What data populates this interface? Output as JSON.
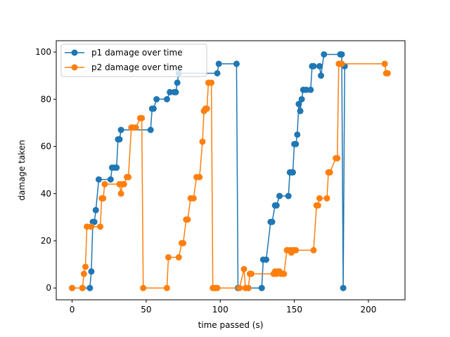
{
  "chart_data": {
    "type": "line",
    "title": "",
    "xlabel": "time passed (s)",
    "ylabel": "damage taken",
    "xlim": [
      -10.7,
      224.7
    ],
    "ylim": [
      -5,
      104.8
    ],
    "xticks": [
      0,
      50,
      100,
      150,
      200
    ],
    "yticks": [
      0,
      20,
      40,
      60,
      80,
      100
    ],
    "grid": false,
    "legend_position": "top-left",
    "series": [
      {
        "name": "p1 damage over time",
        "color": "#1f77b4",
        "marker": "circle",
        "x": [
          0,
          7,
          12,
          13,
          14,
          15,
          16,
          18,
          26,
          27,
          29,
          30,
          31,
          32,
          33,
          53,
          54,
          55,
          57,
          64,
          66,
          69,
          70,
          71,
          72,
          98,
          99,
          111,
          112,
          119,
          128,
          129,
          131,
          134,
          135,
          137,
          138,
          140,
          146,
          147,
          148,
          149,
          150,
          151,
          152,
          153,
          154,
          155,
          156,
          158,
          161,
          162,
          163,
          167,
          168,
          170,
          181,
          182,
          183,
          184
        ],
        "y": [
          0,
          0,
          0,
          7,
          28,
          28,
          33,
          46,
          46,
          51,
          51,
          51,
          63,
          63,
          67,
          67,
          76,
          76,
          80,
          80,
          83,
          83,
          83,
          87,
          91,
          91,
          95,
          95,
          0,
          0,
          0,
          12,
          12,
          28,
          28,
          35,
          35,
          39,
          39,
          49,
          49,
          49,
          61,
          61,
          65,
          78,
          75,
          80,
          84,
          84,
          84,
          94,
          94,
          94,
          90,
          99,
          99,
          99,
          0,
          94
        ]
      },
      {
        "name": "p2 damage over time",
        "color": "#ff7f0e",
        "marker": "circle",
        "x": [
          0,
          7,
          8,
          9,
          10,
          13,
          19,
          20,
          21,
          22,
          32,
          33,
          34,
          35,
          37,
          38,
          40,
          41,
          43,
          46,
          47,
          48,
          64,
          65,
          72,
          74,
          75,
          77,
          78,
          80,
          82,
          84,
          86,
          88,
          89,
          90,
          91,
          92,
          94,
          95,
          96,
          97,
          98,
          113,
          116,
          117,
          119,
          120,
          121,
          136,
          137,
          138,
          139,
          140,
          141,
          143,
          145,
          147,
          148,
          149,
          150,
          151,
          163,
          165,
          166,
          167,
          172,
          173,
          174,
          178,
          179,
          180,
          181,
          182,
          211,
          212,
          213
        ],
        "y": [
          0,
          0,
          6,
          9,
          26,
          26,
          26,
          38,
          38,
          44,
          44,
          40,
          44,
          44,
          47,
          47,
          68,
          68,
          68,
          72,
          72,
          0,
          0,
          13,
          13,
          19,
          19,
          29,
          29,
          38,
          38,
          47,
          47,
          62,
          75,
          76,
          76,
          87,
          87,
          0,
          0,
          0,
          0,
          0,
          8,
          0,
          0,
          6,
          6,
          6,
          7,
          6,
          7,
          7,
          6,
          6,
          16,
          16,
          15,
          16,
          16,
          16,
          16,
          35,
          35,
          38,
          38,
          49,
          49,
          55,
          55,
          95,
          95,
          95,
          95,
          91,
          91
        ]
      }
    ]
  }
}
